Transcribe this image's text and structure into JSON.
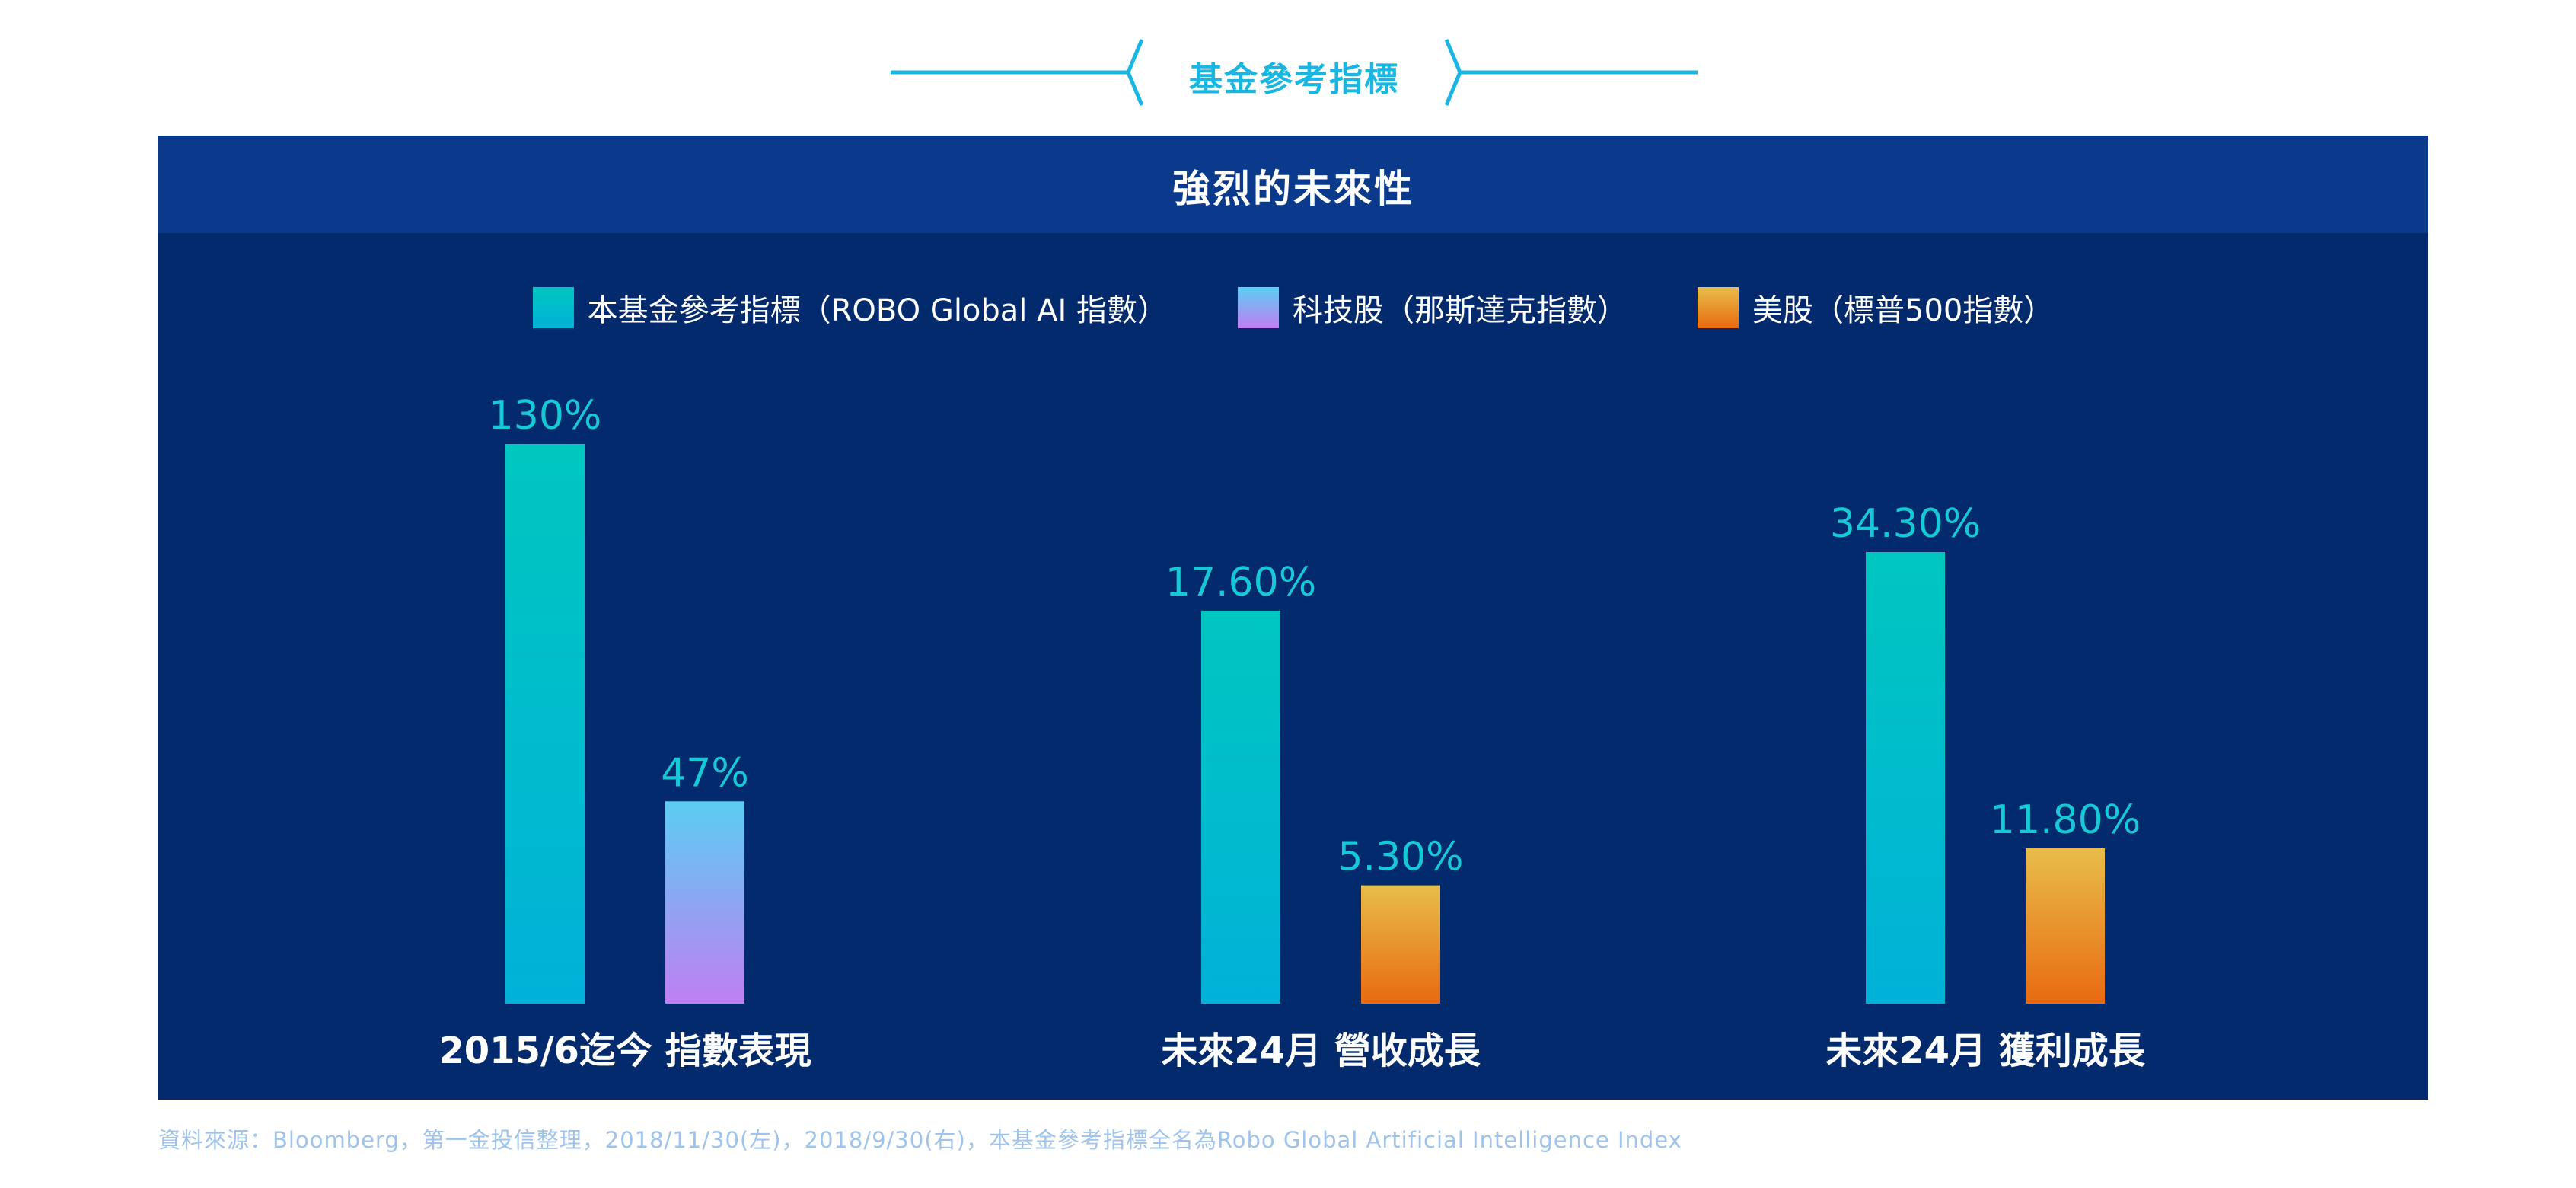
{
  "header": {
    "title": "基金參考指標"
  },
  "panel": {
    "title": "強烈的未來性"
  },
  "colors": {
    "cyan": "#19b6e2",
    "panel_bg": "#022a6c",
    "panel_head_bg": "#0b3a8c",
    "value_label": "#17c8d6"
  },
  "chart_data": {
    "type": "bar",
    "title": "",
    "xlabel": "",
    "ylabel": "",
    "grid": false,
    "legend_position": "top-center",
    "legend": [
      {
        "name": "本基金參考指標（ROBO Global AI 指數）",
        "gradient": [
          "#00c6c0",
          "#00b2d8"
        ]
      },
      {
        "name": "科技股（那斯達克指數）",
        "gradient": [
          "#5ccdf2",
          "#c07ef2"
        ]
      },
      {
        "name": "美股（標普500指數）",
        "gradient": [
          "#e8bd4a",
          "#e86a10"
        ]
      }
    ],
    "groups": [
      {
        "category": "2015/6迄今 指數表現",
        "bars": [
          {
            "series": 0,
            "value": 130,
            "label": "130%"
          },
          {
            "series": 1,
            "value": 47,
            "label": "47%"
          }
        ]
      },
      {
        "category": "未來24月 營收成長",
        "bars": [
          {
            "series": 0,
            "value": 17.6,
            "label": "17.60%"
          },
          {
            "series": 2,
            "value": 5.3,
            "label": "5.30%"
          }
        ]
      },
      {
        "category": "未來24月 獲利成長",
        "bars": [
          {
            "series": 0,
            "value": 34.3,
            "label": "34.30%"
          },
          {
            "series": 2,
            "value": 11.8,
            "label": "11.80%"
          }
        ]
      }
    ]
  },
  "footer": {
    "source": "資料來源：Bloomberg，第一金投信整理，2018/11/30(左)，2018/9/30(右)，本基金參考指標全名為Robo Global Artificial Intelligence Index"
  }
}
